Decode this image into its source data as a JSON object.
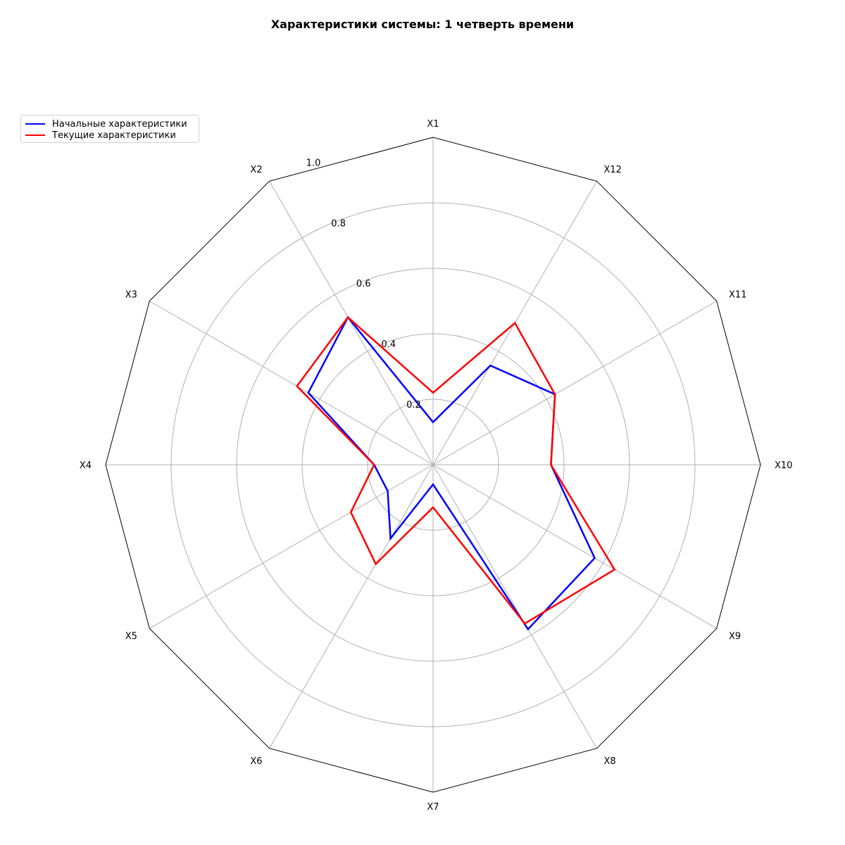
{
  "chart_data": {
    "type": "radar",
    "title": "Характеристики системы: 1 четверть времени",
    "categories": [
      "X1",
      "X2",
      "X3",
      "X4",
      "X5",
      "X6",
      "X7",
      "X8",
      "X9",
      "X10",
      "X11",
      "X12"
    ],
    "radial_ticks": [
      "0.2",
      "0.4",
      "0.6",
      "0.8",
      "1.0"
    ],
    "rlim": [
      0,
      1.0
    ],
    "grid": true,
    "legend_position": "top-left",
    "series": [
      {
        "name": "Начальные характеристики",
        "color": "#0000ff",
        "values": [
          0.13,
          0.52,
          0.44,
          0.18,
          0.16,
          0.26,
          0.06,
          0.58,
          0.57,
          0.36,
          0.43,
          0.35
        ]
      },
      {
        "name": "Текущие характеристики",
        "color": "#ff0000",
        "values": [
          0.22,
          0.52,
          0.48,
          0.18,
          0.29,
          0.35,
          0.13,
          0.56,
          0.64,
          0.36,
          0.43,
          0.5
        ]
      }
    ]
  }
}
